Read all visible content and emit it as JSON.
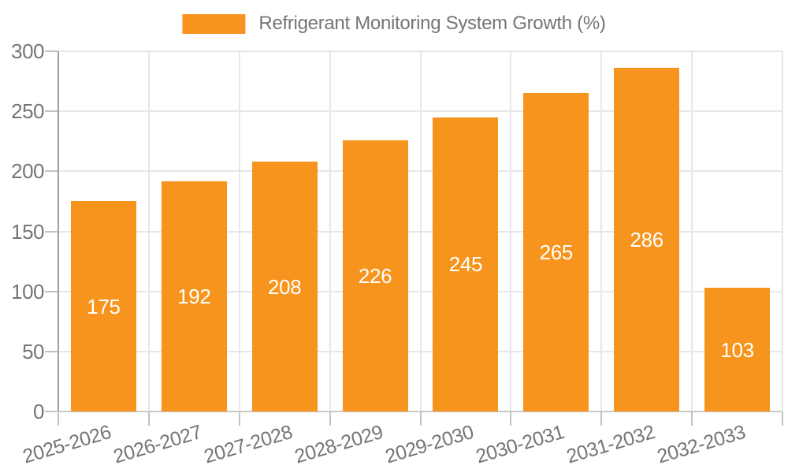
{
  "legend": {
    "label": "Refrigerant Monitoring System Growth (%)"
  },
  "chart_data": {
    "type": "bar",
    "title": "Refrigerant Monitoring System Growth (%)",
    "categories": [
      "2025-2026",
      "2026-2027",
      "2027-2028",
      "2028-2029",
      "2029-2030",
      "2030-2031",
      "2031-2032",
      "2032-2033"
    ],
    "values": [
      175,
      192,
      208,
      226,
      245,
      265,
      286,
      103
    ],
    "xlabel": "",
    "ylabel": "",
    "ylim": [
      0,
      300
    ],
    "yticks": [
      0,
      50,
      100,
      150,
      200,
      250,
      300
    ],
    "grid": true,
    "legend_position": "top-center",
    "bar_color": "#F7941E",
    "value_label_color": "#FFFFFF",
    "axis_text_color": "#757575"
  }
}
